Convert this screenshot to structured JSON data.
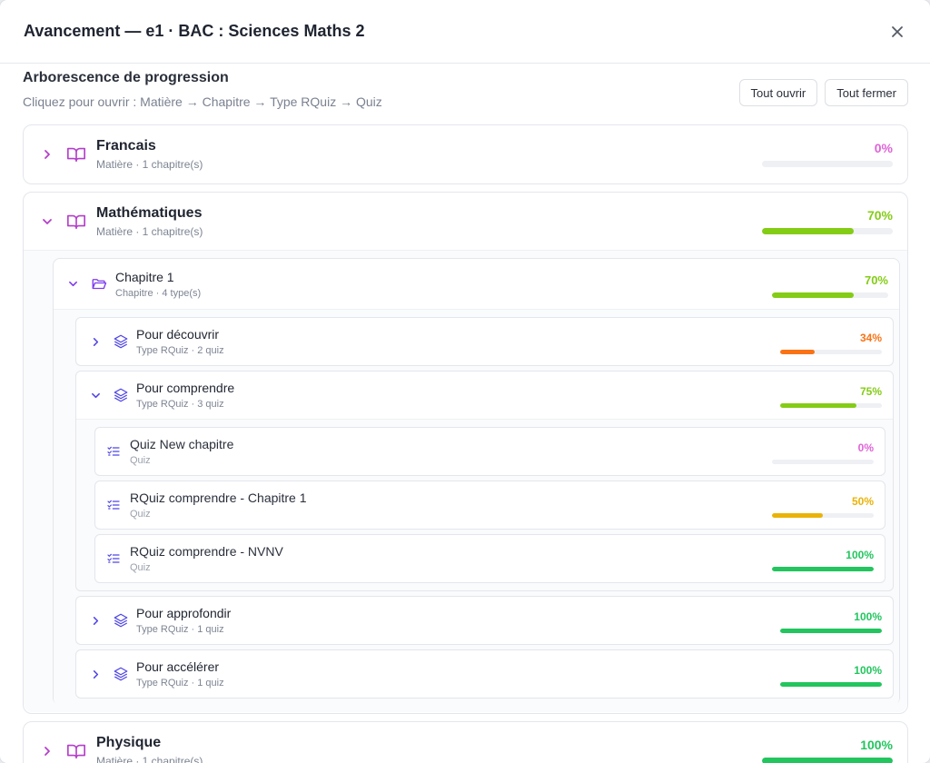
{
  "modal": {
    "title": "Avancement — e1 · BAC : Sciences Maths 2"
  },
  "tree": {
    "heading": "Arborescence de progression",
    "hint": "Cliquez pour ouvrir : Matière → Chapitre → Type RQuiz → Quiz",
    "open_all": "Tout ouvrir",
    "close_all": "Tout fermer"
  },
  "subjects": [
    {
      "name": "Francais",
      "meta": "Matière · 1 chapitre(s)",
      "pct": "0%",
      "progress": 0,
      "color": "#e063d8"
    },
    {
      "name": "Mathématiques",
      "meta": "Matière · 1 chapitre(s)",
      "pct": "70%",
      "progress": 70,
      "color": "#84cc16"
    },
    {
      "name": "Physique",
      "meta": "Matière · 1 chapitre(s)",
      "pct": "100%",
      "progress": 100,
      "color": "#22c55e"
    }
  ],
  "chapter": {
    "name": "Chapitre 1",
    "meta": "Chapitre · 4 type(s)",
    "pct": "70%",
    "progress": 70,
    "color": "#84cc16"
  },
  "types": [
    {
      "name": "Pour découvrir",
      "meta": "Type RQuiz · 2 quiz",
      "pct": "34%",
      "progress": 34,
      "color": "#f97316"
    },
    {
      "name": "Pour comprendre",
      "meta": "Type RQuiz · 3 quiz",
      "pct": "75%",
      "progress": 75,
      "color": "#84cc16"
    },
    {
      "name": "Pour approfondir",
      "meta": "Type RQuiz · 1 quiz",
      "pct": "100%",
      "progress": 100,
      "color": "#22c55e"
    },
    {
      "name": "Pour accélérer",
      "meta": "Type RQuiz · 1 quiz",
      "pct": "100%",
      "progress": 100,
      "color": "#22c55e"
    }
  ],
  "quizzes": [
    {
      "name": "Quiz New chapitre",
      "meta": "Quiz",
      "pct": "0%",
      "progress": 0,
      "color": "#e063d8"
    },
    {
      "name": "RQuiz comprendre - Chapitre 1",
      "meta": "Quiz",
      "pct": "50%",
      "progress": 50,
      "color": "#eab308"
    },
    {
      "name": "RQuiz comprendre - NVNV",
      "meta": "Quiz",
      "pct": "100%",
      "progress": 100,
      "color": "#22c55e"
    }
  ],
  "icons": {
    "close": "close-icon",
    "subject": "book-open-icon",
    "chapter": "folder-open-icon",
    "type": "layers-icon",
    "quiz": "checklist-icon"
  }
}
